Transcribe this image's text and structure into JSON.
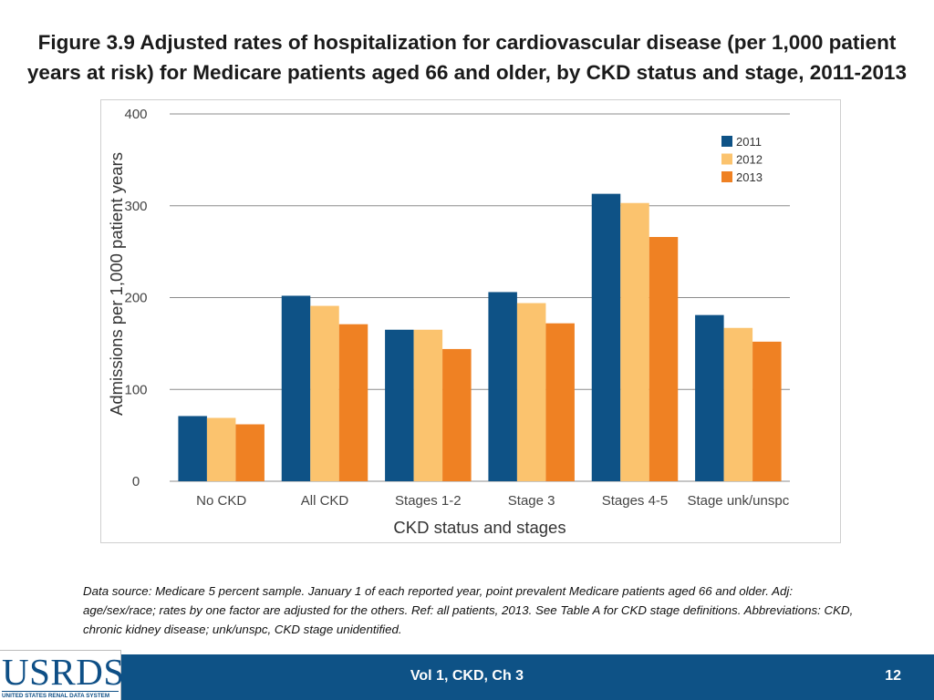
{
  "slide": {
    "title_line1": "Figure 3.9  Adjusted rates of hospitalization for cardiovascular disease (per 1,000 patient",
    "title_line2": "years at risk) for Medicare patients aged 66 and older, by CKD status and stage, 2011-2013",
    "footnote": "Data source: Medicare 5 percent sample. January 1 of each reported year, point prevalent Medicare patients aged 66 and older. Adj: age/sex/race; rates by one factor are adjusted for the others. Ref: all patients, 2013. See Table A for CKD stage definitions. Abbreviations: CKD, chronic kidney disease; unk/unspc, CKD stage unidentified.",
    "footer_center": "Vol 1, CKD, Ch 3",
    "page_number": "12",
    "logo_text": "USRDS",
    "logo_subtext": "UNITED STATES RENAL DATA SYSTEM"
  },
  "chart_data": {
    "type": "bar",
    "title": "Figure 3.9  Adjusted rates of hospitalization for cardiovascular disease (per 1,000 patient years at risk) for Medicare patients aged 66 and older, by CKD status and stage, 2011-2013",
    "xlabel": "CKD status and stages",
    "ylabel": "Admissions per 1,000 patient years",
    "ylim": [
      0,
      400
    ],
    "yticks": [
      0,
      100,
      200,
      300,
      400
    ],
    "grid": true,
    "legend_position": "top-right",
    "categories": [
      "No CKD",
      "All CKD",
      "Stages 1-2",
      "Stage 3",
      "Stages 4-5",
      "Stage unk/unspc"
    ],
    "series": [
      {
        "name": "2011",
        "color": "#0e5286",
        "values": [
          71,
          202,
          165,
          206,
          313,
          181
        ]
      },
      {
        "name": "2012",
        "color": "#fbc36e",
        "values": [
          69,
          191,
          165,
          194,
          303,
          167
        ]
      },
      {
        "name": "2013",
        "color": "#ef8123",
        "values": [
          62,
          171,
          144,
          172,
          266,
          152
        ]
      }
    ]
  }
}
